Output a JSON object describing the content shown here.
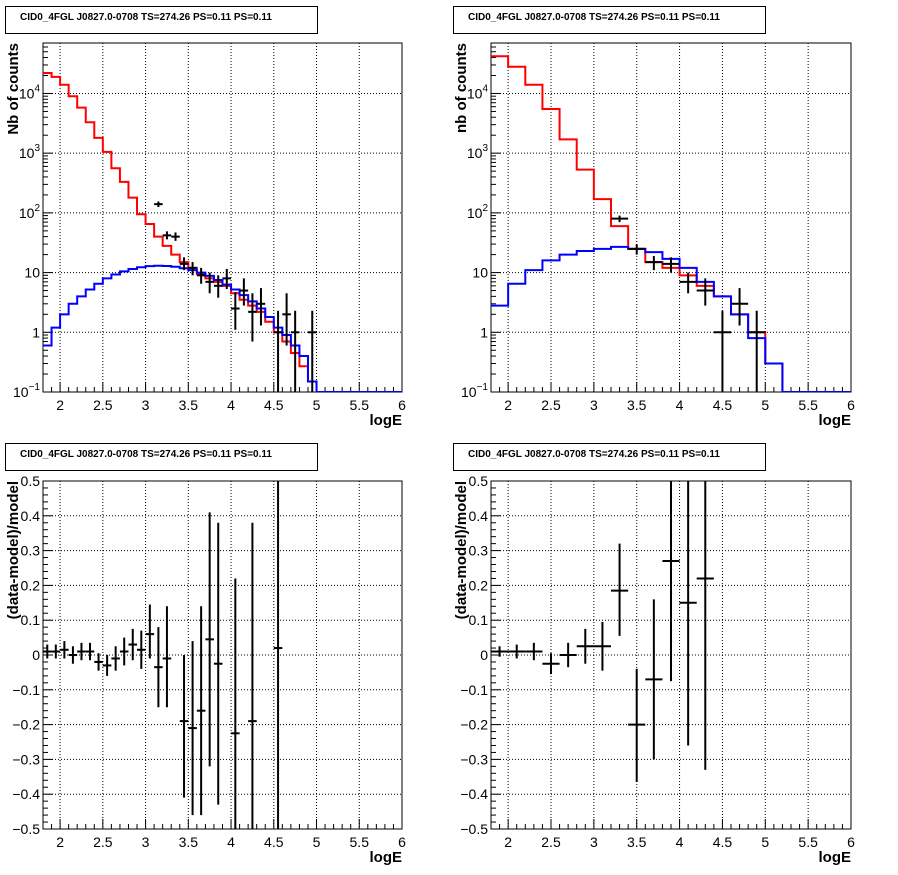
{
  "chart_data": [
    {
      "type": "histogram",
      "title": "CID0_4FGL J0827.0-0708 TS=274.26 PS=0.11 PS=0.11",
      "xlabel": "logE",
      "ylabel": "Nb of counts",
      "xlim": [
        1.8,
        6.0
      ],
      "ylim": [
        0.1,
        70000
      ],
      "yscale": "log",
      "grid": true,
      "xticks": [
        "2",
        "2.5",
        "3",
        "3.5",
        "4",
        "4.5",
        "5",
        "5.5",
        "6"
      ],
      "yticks": [
        "10^-1",
        "1",
        "10",
        "10^2",
        "10^3",
        "10^4"
      ],
      "bin_edges": [
        1.8,
        1.9,
        2.0,
        2.1,
        2.2,
        2.3,
        2.4,
        2.5,
        2.6,
        2.7,
        2.8,
        2.9,
        3.0,
        3.1,
        3.2,
        3.3,
        3.4,
        3.5,
        3.6,
        3.7,
        3.8,
        3.9,
        4.0,
        4.1,
        4.2,
        4.3,
        4.4,
        4.5,
        4.6,
        4.7,
        4.8,
        4.9,
        5.0,
        5.1,
        5.2,
        5.3,
        5.4,
        5.5,
        5.6,
        5.7,
        5.8,
        5.9,
        6.0
      ],
      "series": [
        {
          "color": "#ff0000",
          "kind": "step",
          "values": [
            22000,
            19000,
            14000,
            9000,
            5800,
            3300,
            1800,
            1050,
            560,
            330,
            180,
            95,
            65,
            40,
            28,
            20,
            15,
            12,
            9.5,
            8,
            7,
            6,
            4.5,
            3.5,
            2.8,
            2.2,
            1.5,
            1.0,
            0.7,
            0.45,
            0.27,
            0.15,
            0.1,
            0.1,
            0.1,
            0.1,
            0.1,
            0.1,
            0.1,
            0.1,
            0.1,
            0.1
          ]
        },
        {
          "color": "#0000ff",
          "kind": "step",
          "values": [
            0.6,
            1.2,
            2.0,
            3.0,
            4.0,
            5.2,
            6.5,
            8.0,
            9.3,
            10.5,
            11.5,
            12.3,
            12.8,
            13.0,
            12.9,
            12.5,
            11.8,
            11.0,
            10.0,
            8.8,
            7.5,
            6.3,
            5.2,
            4.2,
            3.3,
            2.5,
            1.8,
            1.2,
            0.9,
            0.6,
            0.4,
            0.15,
            0.1,
            0.1,
            0.1,
            0.1,
            0.1,
            0.1,
            0.1,
            0.1,
            0.1,
            0.1
          ]
        },
        {
          "color": "#000000",
          "kind": "points",
          "points": [
            {
              "x": 3.15,
              "y": 140,
              "ylo": 125,
              "yhi": 155,
              "xw": 0.05
            },
            {
              "x": 3.25,
              "y": 42,
              "ylo": 36,
              "yhi": 49,
              "xw": 0.05
            },
            {
              "x": 3.35,
              "y": 40,
              "ylo": 34,
              "yhi": 47,
              "xw": 0.05
            },
            {
              "x": 3.45,
              "y": 14,
              "ylo": 11,
              "yhi": 18,
              "xw": 0.05
            },
            {
              "x": 3.55,
              "y": 12,
              "ylo": 9,
              "yhi": 15,
              "xw": 0.05
            },
            {
              "x": 3.65,
              "y": 9,
              "ylo": 6.5,
              "yhi": 12,
              "xw": 0.05
            },
            {
              "x": 3.75,
              "y": 7,
              "ylo": 4.5,
              "yhi": 10,
              "xw": 0.05
            },
            {
              "x": 3.85,
              "y": 6,
              "ylo": 3.8,
              "yhi": 9,
              "xw": 0.05
            },
            {
              "x": 3.95,
              "y": 8,
              "ylo": 5.3,
              "yhi": 11.5,
              "xw": 0.05
            },
            {
              "x": 4.05,
              "y": 2.5,
              "ylo": 1.1,
              "yhi": 4.7,
              "xw": 0.05
            },
            {
              "x": 4.15,
              "y": 5,
              "ylo": 2.8,
              "yhi": 8,
              "xw": 0.05
            },
            {
              "x": 4.25,
              "y": 2.2,
              "ylo": 0.7,
              "yhi": 4.5,
              "xw": 0.05
            },
            {
              "x": 4.35,
              "y": 3,
              "ylo": 1.3,
              "yhi": 5.5,
              "xw": 0.05
            },
            {
              "x": 4.55,
              "y": 1,
              "ylo": 0.1,
              "yhi": 2.3,
              "xw": 0.05
            },
            {
              "x": 4.65,
              "y": 2,
              "ylo": 0.6,
              "yhi": 4.5,
              "xw": 0.05
            },
            {
              "x": 4.75,
              "y": 1,
              "ylo": 0.1,
              "yhi": 2.3,
              "xw": 0.05
            },
            {
              "x": 4.95,
              "y": 1,
              "ylo": 0.1,
              "yhi": 2.3,
              "xw": 0.05
            }
          ]
        }
      ]
    },
    {
      "type": "histogram",
      "title": "CID0_4FGL J0827.0-0708 TS=274.26 PS=0.11 PS=0.11",
      "xlabel": "logE",
      "ylabel": "nb of counts",
      "xlim": [
        1.8,
        6.0
      ],
      "ylim": [
        0.1,
        70000
      ],
      "yscale": "log",
      "grid": true,
      "xticks": [
        "2",
        "2.5",
        "3",
        "3.5",
        "4",
        "4.5",
        "5",
        "5.5",
        "6"
      ],
      "yticks": [
        "10^-1",
        "1",
        "10",
        "10^2",
        "10^3",
        "10^4"
      ],
      "bin_edges": [
        1.8,
        2.0,
        2.2,
        2.4,
        2.6,
        2.8,
        3.0,
        3.2,
        3.4,
        3.6,
        3.8,
        4.0,
        4.2,
        4.4,
        4.6,
        4.8,
        5.0,
        5.2,
        5.4,
        5.6,
        5.8,
        6.0
      ],
      "series": [
        {
          "color": "#ff0000",
          "kind": "step",
          "values": [
            42000,
            28000,
            14000,
            5500,
            1700,
            530,
            170,
            60,
            25,
            15,
            12,
            9,
            6,
            4,
            2,
            1,
            0.3,
            0.1,
            0.1,
            0.1,
            0.1
          ]
        },
        {
          "color": "#0000ff",
          "kind": "step",
          "values": [
            2.8,
            6.5,
            11,
            16,
            20,
            23,
            25,
            27,
            25,
            22,
            17,
            12,
            7,
            4,
            2,
            0.8,
            0.3,
            0.1,
            0.1,
            0.1,
            0.1
          ]
        },
        {
          "color": "#000000",
          "kind": "points",
          "points": [
            {
              "x": 3.3,
              "y": 80,
              "ylo": 70,
              "yhi": 90,
              "xw": 0.1
            },
            {
              "x": 3.5,
              "y": 25,
              "ylo": 20,
              "yhi": 30,
              "xw": 0.1
            },
            {
              "x": 3.7,
              "y": 15,
              "ylo": 11,
              "yhi": 19,
              "xw": 0.1
            },
            {
              "x": 3.9,
              "y": 14,
              "ylo": 10,
              "yhi": 18,
              "xw": 0.1
            },
            {
              "x": 4.1,
              "y": 7,
              "ylo": 4.5,
              "yhi": 10,
              "xw": 0.1
            },
            {
              "x": 4.3,
              "y": 5,
              "ylo": 2.8,
              "yhi": 8,
              "xw": 0.1
            },
            {
              "x": 4.5,
              "y": 1,
              "ylo": 0.1,
              "yhi": 2.3,
              "xw": 0.1
            },
            {
              "x": 4.7,
              "y": 3,
              "ylo": 1.3,
              "yhi": 5.5,
              "xw": 0.1
            },
            {
              "x": 4.9,
              "y": 1,
              "ylo": 0.1,
              "yhi": 2.3,
              "xw": 0.1
            }
          ]
        }
      ]
    },
    {
      "type": "scatter",
      "title": "CID0_4FGL J0827.0-0708 TS=274.26 PS=0.11 PS=0.11",
      "xlabel": "logE",
      "ylabel": "(data-model)/model",
      "xlim": [
        1.8,
        6.0
      ],
      "ylim": [
        -0.5,
        0.5
      ],
      "yscale": "linear",
      "grid": true,
      "xticks": [
        "2",
        "2.5",
        "3",
        "3.5",
        "4",
        "4.5",
        "5",
        "5.5",
        "6"
      ],
      "yticks": [
        "-0.5",
        "-0.4",
        "-0.3",
        "-0.2",
        "-0.1",
        "0",
        "0.1",
        "0.2",
        "0.3",
        "0.4",
        "0.5"
      ],
      "series": [
        {
          "color": "#000000",
          "kind": "points",
          "points": [
            {
              "x": 1.85,
              "y": 0.01,
              "ylo": -0.01,
              "yhi": 0.03,
              "xw": 0.05
            },
            {
              "x": 1.95,
              "y": 0.01,
              "ylo": -0.01,
              "yhi": 0.03,
              "xw": 0.05
            },
            {
              "x": 2.05,
              "y": 0.015,
              "ylo": -0.01,
              "yhi": 0.04,
              "xw": 0.05
            },
            {
              "x": 2.15,
              "y": 0.0,
              "ylo": -0.025,
              "yhi": 0.025,
              "xw": 0.05
            },
            {
              "x": 2.25,
              "y": 0.01,
              "ylo": -0.015,
              "yhi": 0.035,
              "xw": 0.05
            },
            {
              "x": 2.35,
              "y": 0.01,
              "ylo": -0.015,
              "yhi": 0.035,
              "xw": 0.05
            },
            {
              "x": 2.45,
              "y": -0.02,
              "ylo": -0.045,
              "yhi": 0.005,
              "xw": 0.05
            },
            {
              "x": 2.55,
              "y": -0.03,
              "ylo": -0.06,
              "yhi": 0.0,
              "xw": 0.05
            },
            {
              "x": 2.65,
              "y": -0.01,
              "ylo": -0.045,
              "yhi": 0.025,
              "xw": 0.05
            },
            {
              "x": 2.75,
              "y": 0.01,
              "ylo": -0.03,
              "yhi": 0.05,
              "xw": 0.05
            },
            {
              "x": 2.85,
              "y": 0.03,
              "ylo": -0.015,
              "yhi": 0.075,
              "xw": 0.05
            },
            {
              "x": 2.95,
              "y": 0.015,
              "ylo": -0.04,
              "yhi": 0.07,
              "xw": 0.05
            },
            {
              "x": 3.05,
              "y": 0.06,
              "ylo": -0.01,
              "yhi": 0.145,
              "xw": 0.05
            },
            {
              "x": 3.15,
              "y": -0.035,
              "ylo": -0.15,
              "yhi": 0.08,
              "xw": 0.05
            },
            {
              "x": 3.25,
              "y": -0.01,
              "ylo": -0.15,
              "yhi": 0.14,
              "xw": 0.05
            },
            {
              "x": 3.45,
              "y": -0.19,
              "ylo": -0.41,
              "yhi": 0.0,
              "xw": 0.05
            },
            {
              "x": 3.55,
              "y": -0.21,
              "ylo": -0.46,
              "yhi": 0.04,
              "xw": 0.05
            },
            {
              "x": 3.65,
              "y": -0.16,
              "ylo": -0.46,
              "yhi": 0.14,
              "xw": 0.05
            },
            {
              "x": 3.75,
              "y": 0.045,
              "ylo": -0.32,
              "yhi": 0.41,
              "xw": 0.05
            },
            {
              "x": 3.85,
              "y": -0.025,
              "ylo": -0.43,
              "yhi": 0.38,
              "xw": 0.05
            },
            {
              "x": 4.05,
              "y": -0.225,
              "ylo": -0.5,
              "yhi": 0.22,
              "xw": 0.05
            },
            {
              "x": 4.25,
              "y": -0.19,
              "ylo": -0.5,
              "yhi": 0.38,
              "xw": 0.05
            },
            {
              "x": 4.55,
              "y": 0.02,
              "ylo": -0.5,
              "yhi": 0.5,
              "xw": 0.05
            }
          ]
        }
      ]
    },
    {
      "type": "scatter",
      "title": "CID0_4FGL J0827.0-0708 TS=274.26 PS=0.11 PS=0.11",
      "xlabel": "logE",
      "ylabel": "(data-model)/model",
      "xlim": [
        1.8,
        6.0
      ],
      "ylim": [
        -0.5,
        0.5
      ],
      "yscale": "linear",
      "grid": true,
      "xticks": [
        "2",
        "2.5",
        "3",
        "3.5",
        "4",
        "4.5",
        "5",
        "5.5",
        "6"
      ],
      "yticks": [
        "-0.5",
        "-0.4",
        "-0.3",
        "-0.2",
        "-0.1",
        "0",
        "0.1",
        "0.2",
        "0.3",
        "0.4",
        "0.5"
      ],
      "series": [
        {
          "color": "#000000",
          "kind": "points",
          "points": [
            {
              "x": 1.9,
              "y": 0.01,
              "ylo": -0.005,
              "yhi": 0.025,
              "xw": 0.1
            },
            {
              "x": 2.1,
              "y": 0.01,
              "ylo": -0.01,
              "yhi": 0.03,
              "xw": 0.1
            },
            {
              "x": 2.3,
              "y": 0.01,
              "ylo": -0.015,
              "yhi": 0.035,
              "xw": 0.1
            },
            {
              "x": 2.5,
              "y": -0.025,
              "ylo": -0.055,
              "yhi": 0.005,
              "xw": 0.1
            },
            {
              "x": 2.7,
              "y": 0.0,
              "ylo": -0.035,
              "yhi": 0.035,
              "xw": 0.1
            },
            {
              "x": 2.9,
              "y": 0.025,
              "ylo": -0.025,
              "yhi": 0.075,
              "xw": 0.1
            },
            {
              "x": 3.1,
              "y": 0.025,
              "ylo": -0.045,
              "yhi": 0.095,
              "xw": 0.1
            },
            {
              "x": 3.3,
              "y": 0.185,
              "ylo": 0.055,
              "yhi": 0.32,
              "xw": 0.1
            },
            {
              "x": 3.5,
              "y": -0.2,
              "ylo": -0.365,
              "yhi": -0.04,
              "xw": 0.1
            },
            {
              "x": 3.7,
              "y": -0.07,
              "ylo": -0.3,
              "yhi": 0.16,
              "xw": 0.1
            },
            {
              "x": 3.9,
              "y": 0.27,
              "ylo": -0.075,
              "yhi": 0.5,
              "xw": 0.1
            },
            {
              "x": 4.1,
              "y": 0.15,
              "ylo": -0.26,
              "yhi": 0.5,
              "xw": 0.1
            },
            {
              "x": 4.3,
              "y": 0.22,
              "ylo": -0.33,
              "yhi": 0.5,
              "xw": 0.1
            }
          ]
        }
      ]
    }
  ]
}
